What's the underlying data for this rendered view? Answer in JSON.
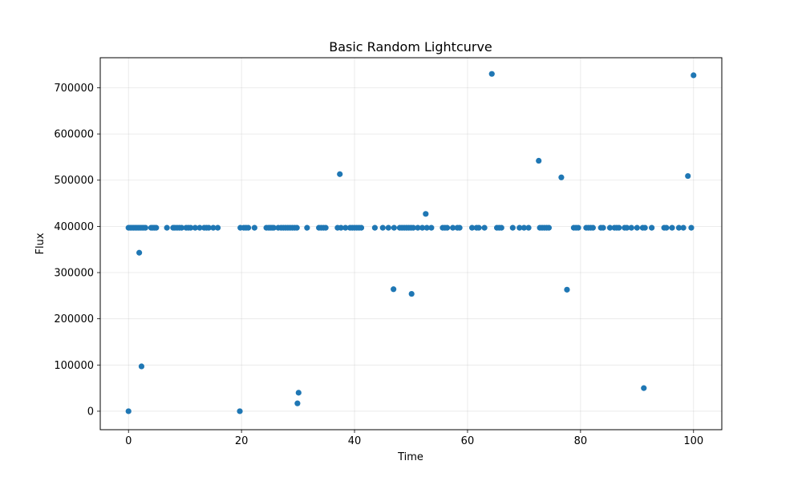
{
  "chart_data": {
    "type": "scatter",
    "title": "Basic Random Lightcurve",
    "xlabel": "Time",
    "ylabel": "Flux",
    "xlim": [
      -5,
      105
    ],
    "ylim": [
      -40000,
      765000
    ],
    "xticks": [
      0,
      20,
      40,
      60,
      80,
      100
    ],
    "yticks": [
      0,
      100000,
      200000,
      300000,
      400000,
      500000,
      600000,
      700000
    ],
    "grid": true,
    "marker_color": "#1f77b4",
    "series": [
      {
        "x": [
          0,
          0.3,
          0.6,
          0.9,
          1.2,
          1.5,
          1.8,
          2.1,
          2.4,
          2.7,
          3.0,
          4.0,
          4.3,
          4.6,
          4.9,
          6.8,
          7.9,
          8.2,
          8.6,
          9.0,
          9.4,
          10.2,
          10.6,
          11.0,
          11.8,
          12.6,
          13.4,
          13.8,
          14.2,
          15.0,
          15.8,
          19.8,
          20.4,
          20.8,
          21.2,
          22.3,
          24.4,
          24.8,
          25.1,
          25.4,
          25.7,
          26.5,
          27.0,
          27.4,
          27.8,
          28.2,
          28.6,
          29.0,
          29.4,
          29.8,
          31.6,
          33.7,
          34.1,
          34.5,
          34.9,
          37.0,
          37.6,
          38.4,
          39.2,
          39.6,
          40.0,
          40.4,
          40.8,
          41.2,
          43.6,
          45.0,
          46.0,
          47.0,
          48.0,
          48.4,
          48.8,
          49.2,
          49.6,
          50.0,
          50.4,
          51.2,
          52.0,
          52.8,
          53.6,
          55.6,
          56.0,
          56.4,
          57.4,
          58.2,
          58.6,
          60.8,
          61.6,
          62.0,
          63.0,
          65.2,
          65.6,
          66.0,
          68.0,
          69.2,
          70.0,
          70.8,
          72.8,
          73.2,
          73.6,
          74.0,
          74.4,
          78.8,
          79.2,
          79.6,
          81.0,
          81.4,
          81.8,
          82.2,
          83.6,
          84.0,
          85.2,
          86.0,
          86.4,
          86.8,
          87.8,
          88.2,
          89.0,
          90.0,
          91.0,
          91.4,
          92.6,
          94.8,
          95.2,
          96.2,
          97.4,
          98.2,
          99.6,
          0,
          1.9,
          2.3,
          19.7,
          29.9,
          30.1,
          37.4,
          46.9,
          50.1,
          52.6,
          64.3,
          72.6,
          76.6,
          77.6,
          91.2,
          99.0,
          100
        ],
        "y": [
          397000,
          397000,
          397000,
          397000,
          397000,
          397000,
          397000,
          397000,
          397000,
          397000,
          397000,
          397000,
          397000,
          397000,
          397000,
          397000,
          397000,
          397000,
          397000,
          397000,
          397000,
          397000,
          397000,
          397000,
          397000,
          397000,
          397000,
          397000,
          397000,
          397000,
          397000,
          397000,
          397000,
          397000,
          397000,
          397000,
          397000,
          397000,
          397000,
          397000,
          397000,
          397000,
          397000,
          397000,
          397000,
          397000,
          397000,
          397000,
          397000,
          397000,
          397000,
          397000,
          397000,
          397000,
          397000,
          397000,
          397000,
          397000,
          397000,
          397000,
          397000,
          397000,
          397000,
          397000,
          397000,
          397000,
          397000,
          397000,
          397000,
          397000,
          397000,
          397000,
          397000,
          397000,
          397000,
          397000,
          397000,
          397000,
          397000,
          397000,
          397000,
          397000,
          397000,
          397000,
          397000,
          397000,
          397000,
          397000,
          397000,
          397000,
          397000,
          397000,
          397000,
          397000,
          397000,
          397000,
          397000,
          397000,
          397000,
          397000,
          397000,
          397000,
          397000,
          397000,
          397000,
          397000,
          397000,
          397000,
          397000,
          397000,
          397000,
          397000,
          397000,
          397000,
          397000,
          397000,
          397000,
          397000,
          397000,
          397000,
          397000,
          397000,
          397000,
          397000,
          397000,
          397000,
          397000,
          0,
          343000,
          97000,
          0,
          17000,
          40000,
          513000,
          264000,
          254000,
          427000,
          730000,
          542000,
          506000,
          263000,
          50000,
          509000,
          727000
        ]
      }
    ]
  }
}
